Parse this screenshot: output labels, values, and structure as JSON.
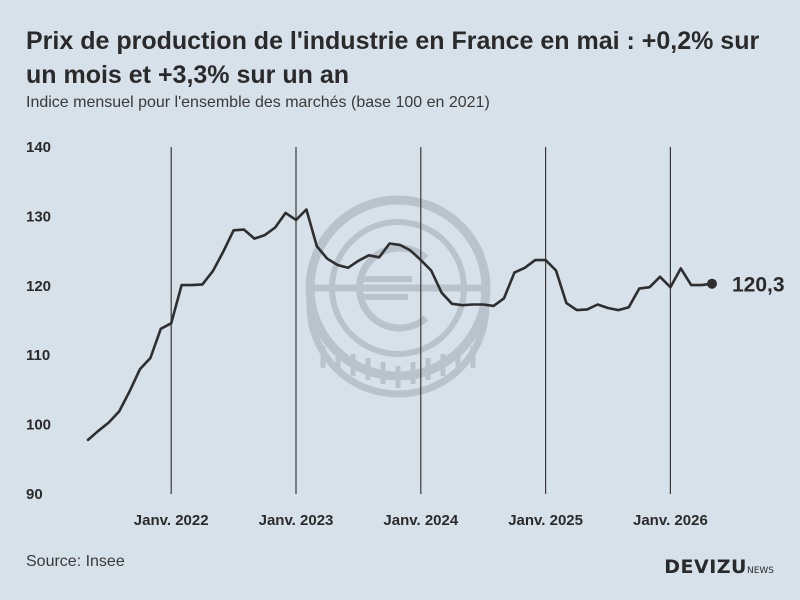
{
  "header": {
    "title": "Prix de production de l'industrie en France en mai : +0,2% sur un mois et +3,3% sur un an",
    "subtitle": "Indice mensuel pour l'ensemble des marchés (base 100 en 2021)"
  },
  "footer": {
    "source": "Source: Insee",
    "brand": "DEVIZU",
    "brand_suffix": "NEWS"
  },
  "watermark_icon": "euro-coin-icon",
  "colors": {
    "background": "#d6e1ea",
    "line": "#2e2e2e",
    "gridline": "#3a3a3a",
    "watermark": "#b9c3cc"
  },
  "chart_data": {
    "type": "line",
    "title": "Prix de production de l'industrie en France en mai : +0,2% sur un mois et +3,3% sur un an",
    "subtitle": "Indice mensuel pour l'ensemble des marchés (base 100 en 2021)",
    "xlabel": "",
    "ylabel": "",
    "ylim": [
      90,
      140
    ],
    "yticks": [
      90,
      100,
      110,
      120,
      130,
      140
    ],
    "x_ticks": [
      {
        "date": "2022-01",
        "label": "Janv. 2022"
      },
      {
        "date": "2023-01",
        "label": "Janv. 2023"
      },
      {
        "date": "2024-01",
        "label": "Janv. 2024"
      },
      {
        "date": "2025-01",
        "label": "Janv. 2025"
      },
      {
        "date": "2026-01",
        "label": "Janv. 2026"
      }
    ],
    "grid": "vertical lines at January of each year",
    "end_label": "120,3",
    "series": [
      {
        "x": [
          "2021-05",
          "2021-06",
          "2021-07",
          "2021-08",
          "2021-09",
          "2021-10",
          "2021-11",
          "2021-12",
          "2022-01",
          "2022-02",
          "2022-03",
          "2022-04",
          "2022-05",
          "2022-06",
          "2022-07",
          "2022-08",
          "2022-09",
          "2022-10",
          "2022-11",
          "2022-12",
          "2023-01",
          "2023-02",
          "2023-03",
          "2023-04",
          "2023-05",
          "2023-06",
          "2023-07",
          "2023-08",
          "2023-09",
          "2023-10",
          "2023-11",
          "2023-12",
          "2024-01",
          "2024-02",
          "2024-03",
          "2024-04",
          "2024-05",
          "2024-06",
          "2024-07",
          "2024-08",
          "2024-09",
          "2024-10",
          "2024-11",
          "2024-12",
          "2025-01",
          "2025-02",
          "2025-03",
          "2025-04",
          "2025-05",
          "2025-06",
          "2025-07",
          "2025-08",
          "2025-09",
          "2025-10",
          "2025-11",
          "2025-12",
          "2026-01",
          "2026-02",
          "2026-03",
          "2026-04",
          "2026-05"
        ],
        "values": [
          97.8,
          99.1,
          100.3,
          101.9,
          104.8,
          108.0,
          109.6,
          113.8,
          114.6,
          120.1,
          120.1,
          120.2,
          122.1,
          124.9,
          128.0,
          128.1,
          126.8,
          127.3,
          128.4,
          130.5,
          129.5,
          131.0,
          125.7,
          123.9,
          123.0,
          122.6,
          123.6,
          124.4,
          124.1,
          126.1,
          125.9,
          125.1,
          123.7,
          122.2,
          119.0,
          117.4,
          117.2,
          117.3,
          117.3,
          117.1,
          118.2,
          121.9,
          122.6,
          123.7,
          123.7,
          122.2,
          117.5,
          116.5,
          116.6,
          117.3,
          116.8,
          116.5,
          116.9,
          119.6,
          119.8,
          121.3,
          119.8,
          122.5,
          120.1,
          120.1,
          120.3
        ]
      }
    ]
  }
}
